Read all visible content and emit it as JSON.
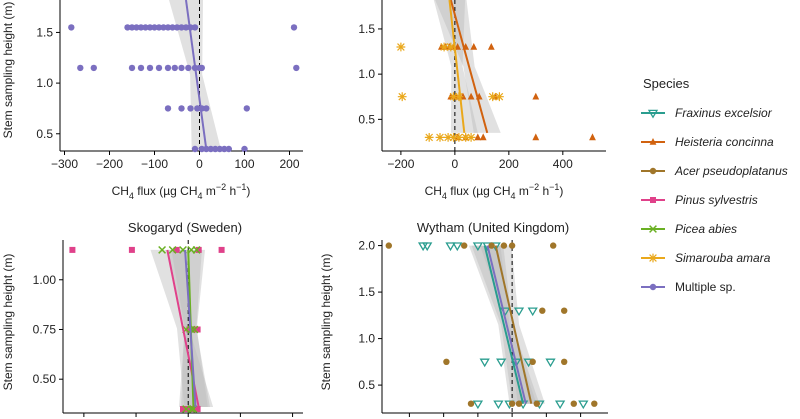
{
  "chart_data": [
    {
      "id": "p1",
      "type": "scatter",
      "title": "",
      "xlabel_parts": [
        "CH",
        "4",
        " flux (µg CH",
        "4",
        " m",
        "−2",
        " h",
        "−1",
        ")"
      ],
      "ylabel": "Stem sampling height (m)",
      "xlim": [
        -310,
        230
      ],
      "ylim": [
        0.33,
        1.82
      ],
      "xticks": [
        -300,
        -200,
        -100,
        0,
        100,
        200
      ],
      "xtick_labels": [
        "−300",
        "−200",
        "−100",
        "0",
        "100",
        "200"
      ],
      "yticks": [
        0.5,
        1.0,
        1.5
      ],
      "ytick_labels": [
        "0.5",
        "1.0",
        "1.5"
      ],
      "series": [
        {
          "name": "Multiple sp.",
          "points": [
            [
              -285,
              1.55
            ],
            [
              -160,
              1.55
            ],
            [
              -150,
              1.55
            ],
            [
              -140,
              1.55
            ],
            [
              -130,
              1.55
            ],
            [
              -120,
              1.55
            ],
            [
              -110,
              1.55
            ],
            [
              -100,
              1.55
            ],
            [
              -90,
              1.55
            ],
            [
              -80,
              1.55
            ],
            [
              -70,
              1.55
            ],
            [
              -60,
              1.55
            ],
            [
              -50,
              1.55
            ],
            [
              -40,
              1.55
            ],
            [
              -30,
              1.55
            ],
            [
              -20,
              1.55
            ],
            [
              -10,
              1.55
            ],
            [
              210,
              1.55
            ],
            [
              -265,
              1.15
            ],
            [
              -235,
              1.15
            ],
            [
              -150,
              1.15
            ],
            [
              -130,
              1.15
            ],
            [
              -110,
              1.15
            ],
            [
              -90,
              1.15
            ],
            [
              -70,
              1.15
            ],
            [
              -55,
              1.15
            ],
            [
              -40,
              1.15
            ],
            [
              -25,
              1.15
            ],
            [
              -10,
              1.15
            ],
            [
              0,
              1.15
            ],
            [
              5,
              1.15
            ],
            [
              215,
              1.15
            ],
            [
              -70,
              0.75
            ],
            [
              -40,
              0.75
            ],
            [
              -20,
              0.75
            ],
            [
              -5,
              0.75
            ],
            [
              5,
              0.75
            ],
            [
              15,
              0.75
            ],
            [
              105,
              0.75
            ],
            [
              -10,
              0.35
            ],
            [
              5,
              0.35
            ],
            [
              15,
              0.35
            ],
            [
              25,
              0.35
            ],
            [
              35,
              0.35
            ],
            [
              45,
              0.35
            ],
            [
              55,
              0.35
            ],
            [
              65,
              0.35
            ],
            [
              100,
              0.35
            ]
          ],
          "trend": [
            [
              -30,
              1.82
            ],
            [
              15,
              0.35
            ]
          ]
        }
      ]
    },
    {
      "id": "p2",
      "type": "scatter",
      "title": "",
      "xlabel_parts": [
        "CH",
        "4",
        " flux (µg CH",
        "4",
        " m",
        "−2",
        " h",
        "−1",
        ")"
      ],
      "ylabel": "",
      "xlim": [
        -270,
        560
      ],
      "ylim": [
        0.15,
        1.82
      ],
      "xticks": [
        -200,
        0,
        200,
        400
      ],
      "xtick_labels": [
        "−200",
        "0",
        "200",
        "400"
      ],
      "yticks": [
        0.5,
        1.0,
        1.5
      ],
      "ytick_labels": [
        "0.5",
        "1.0",
        "1.5"
      ],
      "series": [
        {
          "name": "Heisteria concinna",
          "points": [
            [
              -50,
              1.3
            ],
            [
              -35,
              1.3
            ],
            [
              -20,
              1.3
            ],
            [
              -5,
              1.3
            ],
            [
              10,
              1.3
            ],
            [
              40,
              1.3
            ],
            [
              70,
              1.3
            ],
            [
              135,
              1.3
            ],
            [
              -15,
              0.75
            ],
            [
              5,
              0.75
            ],
            [
              30,
              0.75
            ],
            [
              60,
              0.75
            ],
            [
              90,
              0.75
            ],
            [
              150,
              0.75
            ],
            [
              300,
              0.75
            ],
            [
              10,
              0.3
            ],
            [
              40,
              0.3
            ],
            [
              85,
              0.3
            ],
            [
              105,
              0.3
            ],
            [
              300,
              0.3
            ],
            [
              510,
              0.3
            ]
          ],
          "trend": [
            [
              -15,
              1.82
            ],
            [
              120,
              0.35
            ]
          ]
        },
        {
          "name": "Simarouba amara",
          "points": [
            [
              -200,
              1.3
            ],
            [
              -40,
              1.3
            ],
            [
              -15,
              1.3
            ],
            [
              -195,
              0.75
            ],
            [
              -5,
              0.75
            ],
            [
              15,
              0.75
            ],
            [
              140,
              0.75
            ],
            [
              165,
              0.75
            ],
            [
              -95,
              0.3
            ],
            [
              -55,
              0.3
            ],
            [
              -25,
              0.3
            ],
            [
              -5,
              0.3
            ],
            [
              15,
              0.3
            ],
            [
              40,
              0.3
            ],
            [
              60,
              0.3
            ]
          ],
          "trend": [
            [
              -20,
              1.82
            ],
            [
              35,
              0.35
            ]
          ]
        }
      ]
    },
    {
      "id": "p3",
      "type": "scatter",
      "title": "Skogaryd (Sweden)",
      "xlabel_parts": [],
      "ylabel": "Stem sampling height (m)",
      "xlim": [
        -12,
        11
      ],
      "ylim": [
        0.33,
        1.2
      ],
      "xticks": [
        -10,
        -5,
        0,
        5,
        10
      ],
      "xtick_labels": [],
      "yticks": [
        0.5,
        0.75,
        1.0
      ],
      "ytick_labels": [
        "0.50",
        "0.75",
        "1.00"
      ],
      "series": [
        {
          "name": "Pinus sylvestris",
          "points": [
            [
              -11.1,
              1.15
            ],
            [
              -5.4,
              1.15
            ],
            [
              -1.1,
              1.15
            ],
            [
              1.0,
              1.15
            ],
            [
              3.2,
              1.15
            ],
            [
              0.1,
              0.75
            ],
            [
              0.5,
              0.75
            ],
            [
              0.9,
              0.75
            ],
            [
              -0.5,
              0.35
            ],
            [
              0.0,
              0.35
            ],
            [
              0.4,
              0.35
            ],
            [
              0.9,
              0.35
            ]
          ],
          "trend": [
            [
              -2.0,
              1.15
            ],
            [
              1.0,
              0.36
            ]
          ]
        },
        {
          "name": "Picea abies",
          "points": [
            [
              -2.5,
              1.15
            ],
            [
              -1.5,
              1.15
            ],
            [
              -0.5,
              1.15
            ],
            [
              0.3,
              1.15
            ],
            [
              0.8,
              1.15
            ],
            [
              -0.2,
              0.75
            ],
            [
              0.3,
              0.75
            ],
            [
              0.6,
              0.75
            ],
            [
              -0.2,
              0.35
            ],
            [
              0.3,
              0.35
            ],
            [
              0.5,
              0.35
            ]
          ],
          "trend": [
            [
              0.0,
              1.15
            ],
            [
              0.5,
              0.36
            ]
          ]
        },
        {
          "name": "Multiple sp.",
          "points": [],
          "trend": [
            [
              -0.3,
              1.15
            ],
            [
              0.7,
              0.36
            ]
          ]
        }
      ]
    },
    {
      "id": "p4",
      "type": "scatter",
      "title": "Wytham (United Kingdom)",
      "xlabel_parts": [],
      "ylabel": "Stem sampling height (m)",
      "xlim": [
        -95,
        70
      ],
      "ylim": [
        0.2,
        2.06
      ],
      "xticks": [
        -75,
        -50,
        -25,
        0,
        25,
        50
      ],
      "xtick_labels": [],
      "yticks": [
        0.5,
        1.0,
        1.5,
        2.0
      ],
      "ytick_labels": [
        "0.5",
        "1.0",
        "1.5",
        "2.0"
      ],
      "series": [
        {
          "name": "Fraxinus excelsior",
          "points": [
            [
              -65,
              2.0
            ],
            [
              -62,
              2.0
            ],
            [
              -45,
              2.0
            ],
            [
              -40,
              2.0
            ],
            [
              -25,
              2.0
            ],
            [
              -18,
              2.0
            ],
            [
              -12,
              2.0
            ],
            [
              -5,
              1.3
            ],
            [
              5,
              1.3
            ],
            [
              15,
              1.3
            ],
            [
              -20,
              0.75
            ],
            [
              -8,
              0.75
            ],
            [
              3,
              0.75
            ],
            [
              12,
              0.75
            ],
            [
              28,
              0.75
            ],
            [
              -25,
              0.3
            ],
            [
              -10,
              0.3
            ],
            [
              -2,
              0.3
            ],
            [
              8,
              0.3
            ],
            [
              20,
              0.3
            ],
            [
              35,
              0.3
            ],
            [
              52,
              0.3
            ]
          ],
          "trend": [
            [
              -20,
              2.0
            ],
            [
              8,
              0.3
            ]
          ]
        },
        {
          "name": "Acer pseudoplatanus",
          "points": [
            [
              -90,
              2.0
            ],
            [
              -35,
              2.0
            ],
            [
              -15,
              2.0
            ],
            [
              -6,
              2.0
            ],
            [
              0,
              2.0
            ],
            [
              30,
              2.0
            ],
            [
              22,
              1.3
            ],
            [
              38,
              1.3
            ],
            [
              -48,
              0.75
            ],
            [
              15,
              0.75
            ],
            [
              38,
              0.75
            ],
            [
              -30,
              0.3
            ],
            [
              0,
              0.3
            ],
            [
              5,
              0.3
            ],
            [
              18,
              0.3
            ],
            [
              45,
              0.3
            ],
            [
              60,
              0.3
            ]
          ],
          "trend": [
            [
              -12,
              2.0
            ],
            [
              14,
              0.3
            ]
          ]
        },
        {
          "name": "Multiple sp.",
          "points": [],
          "trend": [
            [
              -18,
              2.0
            ],
            [
              10,
              0.3
            ]
          ]
        }
      ]
    }
  ],
  "legend": {
    "title": "Species",
    "items": [
      {
        "label": "Fraxinus excelsior",
        "color": "#2a9d8f",
        "marker": "triangle-down",
        "italic": true
      },
      {
        "label": "Heisteria concinna",
        "color": "#d1620f",
        "marker": "triangle-up",
        "italic": true
      },
      {
        "label": "Acer pseudoplatanus",
        "color": "#a0762a",
        "marker": "circle",
        "italic": true
      },
      {
        "label": "Pinus sylvestris",
        "color": "#e0418a",
        "marker": "square",
        "italic": true
      },
      {
        "label": "Picea abies",
        "color": "#6ab023",
        "marker": "x",
        "italic": true
      },
      {
        "label": "Simarouba amara",
        "color": "#eaa81b",
        "marker": "asterisk",
        "italic": true
      },
      {
        "label": "Multiple sp.",
        "color": "#7b6fc0",
        "marker": "circle",
        "italic": false
      }
    ]
  }
}
